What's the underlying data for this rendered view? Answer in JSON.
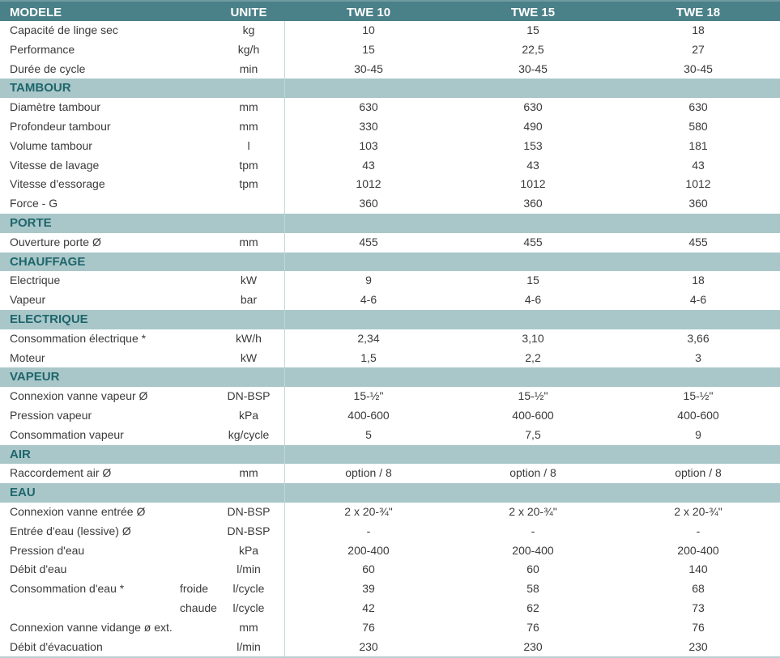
{
  "header": {
    "model": "MODELE",
    "unit": "UNITE",
    "models": [
      "TWE 10",
      "TWE 15",
      "TWE 18"
    ]
  },
  "rows": [
    {
      "label": "Capacité de linge sec",
      "unit": "kg",
      "values": [
        "10",
        "15",
        "18"
      ]
    },
    {
      "label": "Performance",
      "unit": "kg/h",
      "values": [
        "15",
        "22,5",
        "27"
      ]
    },
    {
      "label": "Durée de cycle",
      "unit": "min",
      "values": [
        "30-45",
        "30-45",
        "30-45"
      ]
    },
    {
      "section": "TAMBOUR"
    },
    {
      "label": "Diamètre tambour",
      "unit": "mm",
      "values": [
        "630",
        "630",
        "630"
      ]
    },
    {
      "label": "Profondeur tambour",
      "unit": "mm",
      "values": [
        "330",
        "490",
        "580"
      ]
    },
    {
      "label": "Volume tambour",
      "unit": "l",
      "values": [
        "103",
        "153",
        "181"
      ]
    },
    {
      "label": "Vitesse de lavage",
      "unit": "tpm",
      "values": [
        "43",
        "43",
        "43"
      ]
    },
    {
      "label": "Vitesse d'essorage",
      "unit": "tpm",
      "values": [
        "1012",
        "1012",
        "1012"
      ]
    },
    {
      "label": "Force - G",
      "unit": "",
      "values": [
        "360",
        "360",
        "360"
      ]
    },
    {
      "section": "PORTE"
    },
    {
      "label": "Ouverture porte Ø",
      "unit": "mm",
      "values": [
        "455",
        "455",
        "455"
      ]
    },
    {
      "section": "CHAUFFAGE"
    },
    {
      "label": "Electrique",
      "unit": "kW",
      "values": [
        "9",
        "15",
        "18"
      ]
    },
    {
      "label": "Vapeur",
      "unit": "bar",
      "values": [
        "4-6",
        "4-6",
        "4-6"
      ]
    },
    {
      "section": "ELECTRIQUE"
    },
    {
      "label": "Consommation électrique *",
      "unit": "kW/h",
      "values": [
        "2,34",
        "3,10",
        "3,66"
      ]
    },
    {
      "label": "Moteur",
      "unit": "kW",
      "values": [
        "1,5",
        "2,2",
        "3"
      ]
    },
    {
      "section": "VAPEUR"
    },
    {
      "label": "Connexion vanne vapeur Ø",
      "unit": "DN-BSP",
      "values": [
        "15-½\"",
        "15-½\"",
        "15-½\""
      ]
    },
    {
      "label": "Pression vapeur",
      "unit": "kPa",
      "values": [
        "400-600",
        "400-600",
        "400-600"
      ]
    },
    {
      "label": "Consommation vapeur",
      "unit": "kg/cycle",
      "values": [
        "5",
        "7,5",
        "9"
      ]
    },
    {
      "section": "AIR"
    },
    {
      "label": "Raccordement air Ø",
      "unit": "mm",
      "values": [
        "option / 8",
        "option / 8",
        "option / 8"
      ]
    },
    {
      "section": "EAU"
    },
    {
      "label": "Connexion vanne entrée Ø",
      "unit": "DN-BSP",
      "values": [
        "2 x 20-¾\"",
        "2 x 20-¾\"",
        "2 x 20-¾\""
      ]
    },
    {
      "label": "Entrée d'eau (lessive) Ø",
      "unit": "DN-BSP",
      "values": [
        "-",
        "-",
        "-"
      ]
    },
    {
      "label": "Pression d'eau",
      "unit": "kPa",
      "values": [
        "200-400",
        "200-400",
        "200-400"
      ]
    },
    {
      "label": "Débit d'eau",
      "unit": "l/min",
      "values": [
        "60",
        "60",
        "140"
      ]
    },
    {
      "label": "Consommation d'eau *",
      "sublabel": "froide",
      "unit": "l/cycle",
      "values": [
        "39",
        "58",
        "68"
      ]
    },
    {
      "label": "",
      "sublabel": "chaude",
      "unit": "l/cycle",
      "values": [
        "42",
        "62",
        "73"
      ]
    },
    {
      "label": "Connexion vanne vidange ø ext.",
      "unit": "mm",
      "values": [
        "76",
        "76",
        "76"
      ]
    },
    {
      "label": "Débit d'évacuation",
      "unit": "l/min",
      "values": [
        "230",
        "230",
        "230"
      ]
    }
  ]
}
